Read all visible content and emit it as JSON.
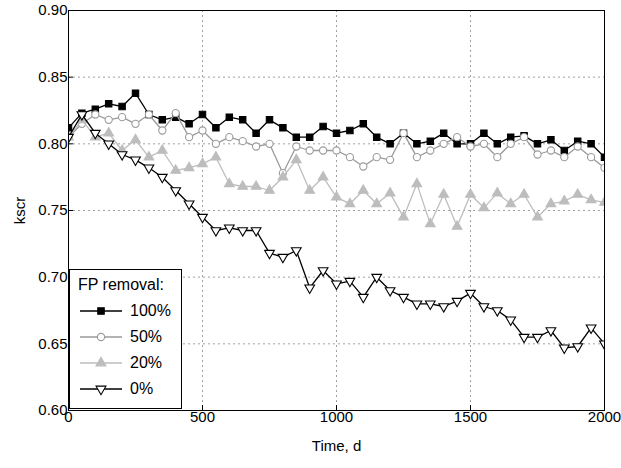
{
  "chart_data": {
    "type": "line",
    "x_label": "Time, d",
    "y_label": "kscr",
    "legend_title": "FP removal:",
    "legend": "lower left",
    "grid": true,
    "xlim": [
      0,
      2000
    ],
    "xticks": [
      0,
      500,
      1000,
      1500,
      2000
    ],
    "ylim": [
      0.6,
      0.9
    ],
    "yticks": [
      {
        "value": 0.6,
        "label": "0.60"
      },
      {
        "value": 0.65,
        "label": "0.65"
      },
      {
        "value": 0.7,
        "label": "0.70"
      },
      {
        "value": 0.75,
        "label": "0.75"
      },
      {
        "value": 0.8,
        "label": "0.80"
      },
      {
        "value": 0.85,
        "label": "0.85"
      },
      {
        "value": 0.9,
        "label": "0.90"
      }
    ],
    "x": [
      0,
      50,
      100,
      150,
      200,
      250,
      300,
      350,
      400,
      450,
      500,
      550,
      600,
      650,
      700,
      750,
      800,
      850,
      900,
      950,
      1000,
      1050,
      1100,
      1150,
      1200,
      1250,
      1300,
      1350,
      1400,
      1450,
      1500,
      1550,
      1600,
      1650,
      1700,
      1750,
      1800,
      1850,
      1900,
      1950,
      2000
    ],
    "series": [
      {
        "name": "100%",
        "color": "#000000",
        "marker": "square",
        "line_style": "solid",
        "values": [
          0.812,
          0.823,
          0.826,
          0.83,
          0.828,
          0.838,
          0.822,
          0.818,
          0.82,
          0.815,
          0.822,
          0.812,
          0.82,
          0.818,
          0.808,
          0.818,
          0.812,
          0.805,
          0.805,
          0.813,
          0.808,
          0.81,
          0.815,
          0.805,
          0.8,
          0.808,
          0.8,
          0.802,
          0.808,
          0.8,
          0.8,
          0.808,
          0.8,
          0.805,
          0.806,
          0.8,
          0.803,
          0.795,
          0.802,
          0.8,
          0.79
        ]
      },
      {
        "name": "50%",
        "color": "#9a9a9a",
        "marker": "circle-open",
        "line_style": "solid",
        "values": [
          0.805,
          0.815,
          0.822,
          0.818,
          0.82,
          0.815,
          0.822,
          0.81,
          0.823,
          0.805,
          0.81,
          0.8,
          0.805,
          0.802,
          0.798,
          0.8,
          0.778,
          0.798,
          0.795,
          0.795,
          0.795,
          0.79,
          0.783,
          0.79,
          0.788,
          0.808,
          0.79,
          0.795,
          0.8,
          0.805,
          0.798,
          0.8,
          0.79,
          0.8,
          0.805,
          0.792,
          0.795,
          0.79,
          0.798,
          0.79,
          0.782
        ]
      },
      {
        "name": "20%",
        "color": "#bdbdbd",
        "marker": "triangle",
        "line_style": "solid",
        "values": [
          0.805,
          0.818,
          0.805,
          0.808,
          0.795,
          0.803,
          0.79,
          0.795,
          0.78,
          0.782,
          0.785,
          0.79,
          0.77,
          0.768,
          0.768,
          0.765,
          0.775,
          0.788,
          0.765,
          0.775,
          0.76,
          0.755,
          0.765,
          0.755,
          0.763,
          0.745,
          0.77,
          0.74,
          0.762,
          0.738,
          0.762,
          0.752,
          0.763,
          0.755,
          0.762,
          0.745,
          0.755,
          0.757,
          0.762,
          0.758,
          0.756
        ]
      },
      {
        "name": "0%",
        "color": "#000000",
        "marker": "triangle-down-open",
        "line_style": "solid",
        "values": [
          0.805,
          0.822,
          0.808,
          0.8,
          0.792,
          0.788,
          0.782,
          0.775,
          0.765,
          0.755,
          0.745,
          0.735,
          0.737,
          0.735,
          0.735,
          0.718,
          0.715,
          0.72,
          0.692,
          0.705,
          0.695,
          0.697,
          0.685,
          0.7,
          0.69,
          0.685,
          0.68,
          0.68,
          0.678,
          0.682,
          0.688,
          0.678,
          0.675,
          0.668,
          0.655,
          0.655,
          0.66,
          0.647,
          0.648,
          0.662,
          0.65
        ]
      }
    ]
  }
}
